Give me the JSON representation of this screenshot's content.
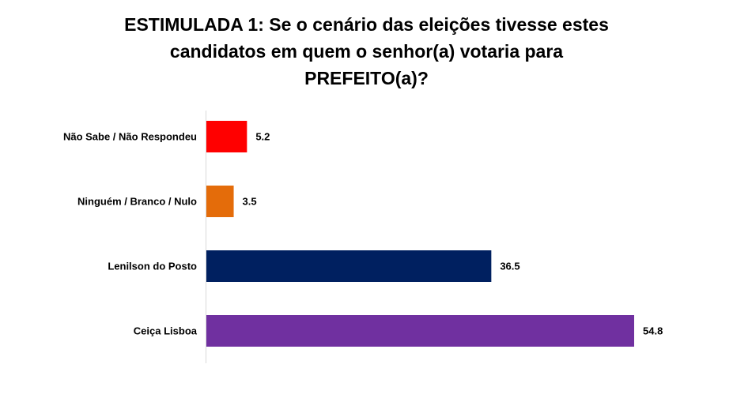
{
  "chart_data": {
    "type": "bar",
    "orientation": "horizontal",
    "title_lines": [
      "ESTIMULADA 1: Se o cenário das eleições tivesse estes",
      "candidatos em quem o senhor(a) votaria para",
      "PREFEITO(a)?"
    ],
    "categories": [
      "Não Sabe / Não Respondeu",
      "Ninguém / Branco / Nulo",
      "Lenilson do Posto",
      "Ceiça Lisboa"
    ],
    "values": [
      5.2,
      3.5,
      36.5,
      54.8
    ],
    "value_labels": [
      "5.2",
      "3.5",
      "36.5",
      "54.8"
    ],
    "colors": [
      "#ff0000",
      "#e46c0a",
      "#002060",
      "#7030a0"
    ],
    "xlim": [
      0,
      54.8
    ],
    "grid": false,
    "legend": "none"
  }
}
